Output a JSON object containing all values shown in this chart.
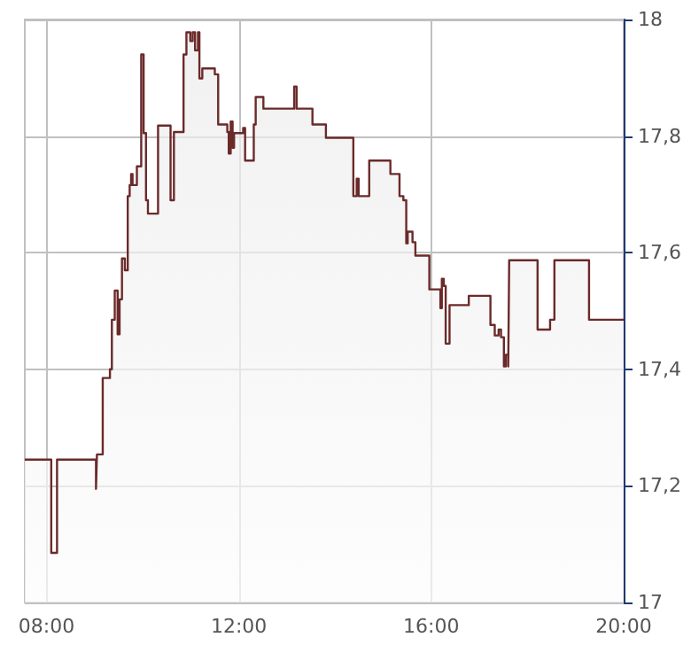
{
  "chart_data": {
    "type": "area",
    "x": [
      7.55,
      8.1,
      8.1,
      8.22,
      8.22,
      9.03,
      9.03,
      9.05,
      9.05,
      9.17,
      9.17,
      9.32,
      9.32,
      9.36,
      9.36,
      9.42,
      9.42,
      9.48,
      9.48,
      9.52,
      9.52,
      9.57,
      9.57,
      9.63,
      9.63,
      9.69,
      9.69,
      9.73,
      9.73,
      9.76,
      9.76,
      9.79,
      9.79,
      9.88,
      9.88,
      9.97,
      9.97,
      10.02,
      10.02,
      10.07,
      10.07,
      10.11,
      10.11,
      10.32,
      10.32,
      10.58,
      10.58,
      10.65,
      10.65,
      10.85,
      10.85,
      10.91,
      10.91,
      10.99,
      10.99,
      11.04,
      11.04,
      11.09,
      11.09,
      11.15,
      11.15,
      11.18,
      11.18,
      11.24,
      11.24,
      11.5,
      11.5,
      11.57,
      11.57,
      11.76,
      11.76,
      11.79,
      11.79,
      11.83,
      11.83,
      11.87,
      11.87,
      11.9,
      11.9,
      12.09,
      12.09,
      12.13,
      12.13,
      12.31,
      12.31,
      12.35,
      12.35,
      12.51,
      12.51,
      13.15,
      13.15,
      13.2,
      13.2,
      13.53,
      13.53,
      13.81,
      13.81,
      14.38,
      14.38,
      14.45,
      14.45,
      14.49,
      14.49,
      14.71,
      14.71,
      15.15,
      15.15,
      15.34,
      15.34,
      15.42,
      15.42,
      15.48,
      15.48,
      15.51,
      15.51,
      15.61,
      15.61,
      15.67,
      15.67,
      15.96,
      15.96,
      16.19,
      16.19,
      16.22,
      16.22,
      16.26,
      16.26,
      16.3,
      16.3,
      16.38,
      16.38,
      16.78,
      16.78,
      17.23,
      17.23,
      17.32,
      17.32,
      17.4,
      17.4,
      17.45,
      17.45,
      17.51,
      17.51,
      17.55,
      17.55,
      17.6,
      17.6,
      17.62,
      17.62,
      18.21,
      18.21,
      18.47,
      18.47,
      18.56,
      18.56,
      19.28,
      19.28,
      20.0
    ],
    "series": [
      {
        "color": "#6b2a2a",
        "values": [
          17.245,
          17.245,
          17.085,
          17.085,
          17.245,
          17.245,
          17.195,
          17.195,
          17.254,
          17.254,
          17.385,
          17.385,
          17.4,
          17.4,
          17.485,
          17.485,
          17.535,
          17.535,
          17.46,
          17.46,
          17.52,
          17.52,
          17.59,
          17.59,
          17.57,
          17.57,
          17.697,
          17.697,
          17.716,
          17.716,
          17.735,
          17.735,
          17.716,
          17.716,
          17.748,
          17.748,
          17.94,
          17.94,
          17.805,
          17.805,
          17.69,
          17.69,
          17.667,
          17.667,
          17.818,
          17.818,
          17.69,
          17.69,
          17.807,
          17.807,
          17.94,
          17.94,
          17.978,
          17.978,
          17.963,
          17.963,
          17.978,
          17.978,
          17.947,
          17.947,
          17.978,
          17.978,
          17.899,
          17.899,
          17.916,
          17.916,
          17.906,
          17.906,
          17.82,
          17.82,
          17.807,
          17.807,
          17.77,
          17.77,
          17.825,
          17.825,
          17.78,
          17.78,
          17.805,
          17.805,
          17.814,
          17.814,
          17.758,
          17.758,
          17.82,
          17.82,
          17.867,
          17.867,
          17.847,
          17.847,
          17.885,
          17.885,
          17.847,
          17.847,
          17.82,
          17.82,
          17.797,
          17.797,
          17.697,
          17.697,
          17.727,
          17.727,
          17.697,
          17.697,
          17.758,
          17.758,
          17.735,
          17.735,
          17.697,
          17.697,
          17.69,
          17.69,
          17.616,
          17.616,
          17.636,
          17.636,
          17.618,
          17.618,
          17.595,
          17.595,
          17.537,
          17.537,
          17.505,
          17.505,
          17.555,
          17.555,
          17.543,
          17.543,
          17.444,
          17.444,
          17.51,
          17.51,
          17.526,
          17.526,
          17.476,
          17.476,
          17.458,
          17.458,
          17.468,
          17.468,
          17.455,
          17.455,
          17.405,
          17.405,
          17.425,
          17.425,
          17.405,
          17.405,
          17.587,
          17.587,
          17.468,
          17.468,
          17.485,
          17.485,
          17.587,
          17.587,
          17.485,
          17.485
        ]
      }
    ],
    "xlim": [
      7.55,
      20
    ],
    "xticks": [
      {
        "value": 8,
        "label": "08:00"
      },
      {
        "value": 12,
        "label": "12:00"
      },
      {
        "value": 16,
        "label": "16:00"
      },
      {
        "value": 20,
        "label": "20:00"
      }
    ],
    "ylim": [
      17,
      18
    ],
    "yticks": [
      {
        "value": 17,
        "label": "17"
      },
      {
        "value": 17.2,
        "label": "17,2"
      },
      {
        "value": 17.4,
        "label": "17,4"
      },
      {
        "value": 17.6,
        "label": "17,6"
      },
      {
        "value": 17.8,
        "label": "17,8"
      },
      {
        "value": 18,
        "label": "18"
      }
    ],
    "grid": true,
    "marker": "none",
    "line_style": "solid"
  }
}
